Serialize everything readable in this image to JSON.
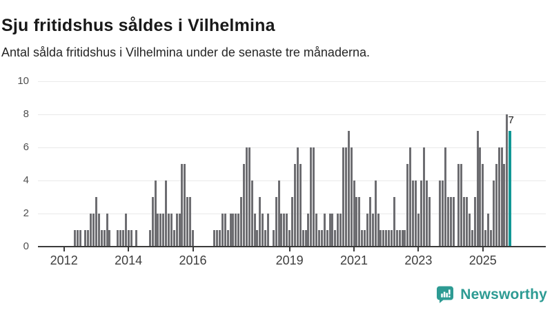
{
  "header": {
    "title": "Sju fritidshus såldes i Vilhelmina",
    "subtitle": "Antal sålda fritidshus i Vilhelmina under de senaste tre månaderna."
  },
  "chart_data": {
    "type": "bar",
    "title": "Sju fritidshus såldes i Vilhelmina",
    "subtitle": "Antal sålda fritidshus i Vilhelmina under de senaste tre månaderna.",
    "frequency": "monthly",
    "start": "2012-01",
    "series": [
      {
        "name": "Antal sålda fritidshus (rullande tre månader)",
        "values": [
          0,
          0,
          0,
          0,
          1,
          1,
          1,
          0,
          1,
          1,
          2,
          2,
          3,
          2,
          1,
          1,
          2,
          1,
          0,
          0,
          1,
          1,
          1,
          2,
          1,
          1,
          0,
          1,
          0,
          0,
          0,
          0,
          1,
          3,
          4,
          2,
          2,
          2,
          4,
          2,
          2,
          1,
          2,
          2,
          5,
          5,
          3,
          3,
          1,
          0,
          0,
          0,
          0,
          0,
          0,
          0,
          1,
          1,
          1,
          2,
          2,
          1,
          2,
          2,
          2,
          2,
          3,
          5,
          6,
          6,
          4,
          2,
          1,
          3,
          2,
          1,
          2,
          0,
          1,
          3,
          4,
          2,
          2,
          2,
          1,
          3,
          5,
          6,
          5,
          1,
          1,
          2,
          6,
          6,
          2,
          1,
          1,
          2,
          1,
          2,
          2,
          1,
          2,
          2,
          6,
          6,
          7,
          6,
          4,
          3,
          3,
          1,
          1,
          2,
          3,
          2,
          4,
          2,
          1,
          1,
          1,
          1,
          1,
          3,
          1,
          1,
          1,
          1,
          5,
          6,
          4,
          4,
          2,
          4,
          6,
          4,
          3,
          0,
          0,
          0,
          4,
          4,
          6,
          3,
          3,
          3,
          0,
          5,
          5,
          3,
          3,
          2,
          1,
          3,
          7,
          6,
          5,
          1,
          2,
          1,
          4,
          5,
          6,
          6,
          5,
          8,
          7
        ]
      }
    ],
    "highlight": {
      "index": 166,
      "value": 7,
      "label": "7"
    },
    "y_axis": {
      "ticks": [
        0,
        2,
        4,
        6,
        8,
        10
      ],
      "max": 10
    },
    "x_axis": {
      "tick_labels": [
        "2012",
        "2014",
        "2016",
        "2019",
        "2021",
        "2023",
        "2025"
      ]
    },
    "grid": "horizontal",
    "legend": "none",
    "colors": {
      "bar": "#6d6d71",
      "highlight": "#119896",
      "gridline": "#e9e9e9",
      "axis": "#3a3a3a"
    }
  },
  "annotation": {
    "last_value_label": "7"
  },
  "footer": {
    "brand": "Newsworthy",
    "brand_color": "#2d9b93",
    "icon": "bar-chart-speech-bubble-icon"
  }
}
